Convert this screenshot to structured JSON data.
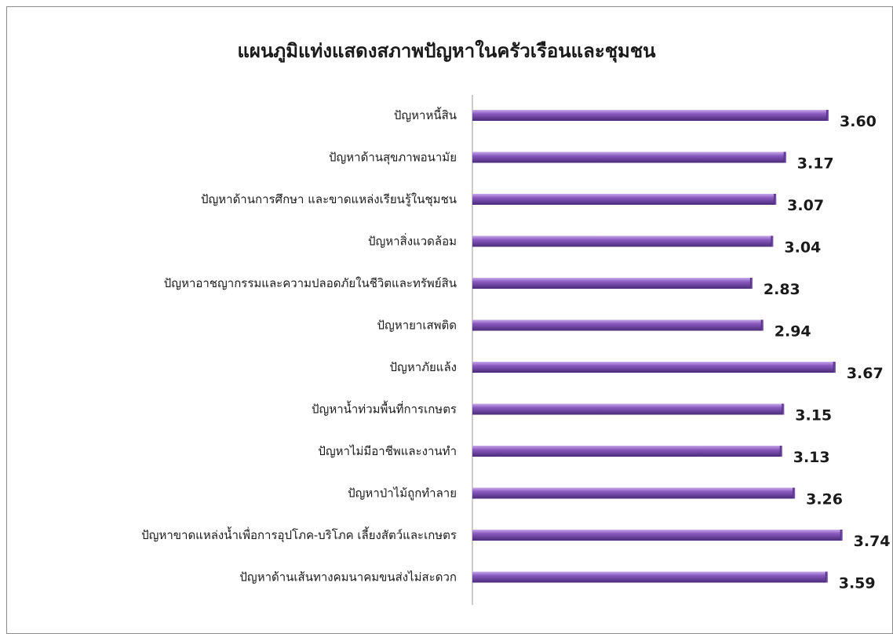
{
  "chart_data": {
    "type": "bar",
    "orientation": "horizontal",
    "title": "แผนภูมิแท่งแสดงสภาพปัญหาในครัวเรือนและชุมชน",
    "categories": [
      "ปัญหาหนี้สิน",
      "ปัญหาด้านสุขภาพอนามัย",
      "ปัญหาด้านการศึกษา และขาดแหล่งเรียนรู้ในชุมชน",
      "ปัญหาสิ่งแวดล้อม",
      "ปัญหาอาชญากรรมและความปลอดภัยในชีวิตและทรัพย์สิน",
      "ปัญหายาเสพติด",
      "ปัญหาภัยแล้ง",
      "ปัญหาน้ำท่วมพื้นที่การเกษตร",
      "ปัญหาไม่มีอาชีพและงานทำ",
      "ปัญหาป่าไม้ถูกทำลาย",
      "ปัญหาขาดแหล่งน้ำเพื่อการอุปโภค-บริโภค เลี้ยงสัตว์และเกษตร",
      "ปัญหาด้านเส้นทางคมนาคมขนส่งไม่สะดวก"
    ],
    "values": [
      3.6,
      3.17,
      3.07,
      3.04,
      2.83,
      2.94,
      3.67,
      3.15,
      3.13,
      3.26,
      3.74,
      3.59
    ],
    "value_labels": [
      "3.60",
      "3.17",
      "3.07",
      "3.04",
      "2.83",
      "2.94",
      "3.67",
      "3.15",
      "3.13",
      "3.26",
      "3.74",
      "3.59"
    ],
    "xlim": [
      0,
      4.0
    ],
    "xlabel": "",
    "ylabel": "",
    "grid": false,
    "legend": "none",
    "bar_color": "#8a5cc0",
    "bar_color_light": "#c9a9ea",
    "bar_color_dark": "#4a2a78",
    "axis_color": "#9a9a9a"
  }
}
